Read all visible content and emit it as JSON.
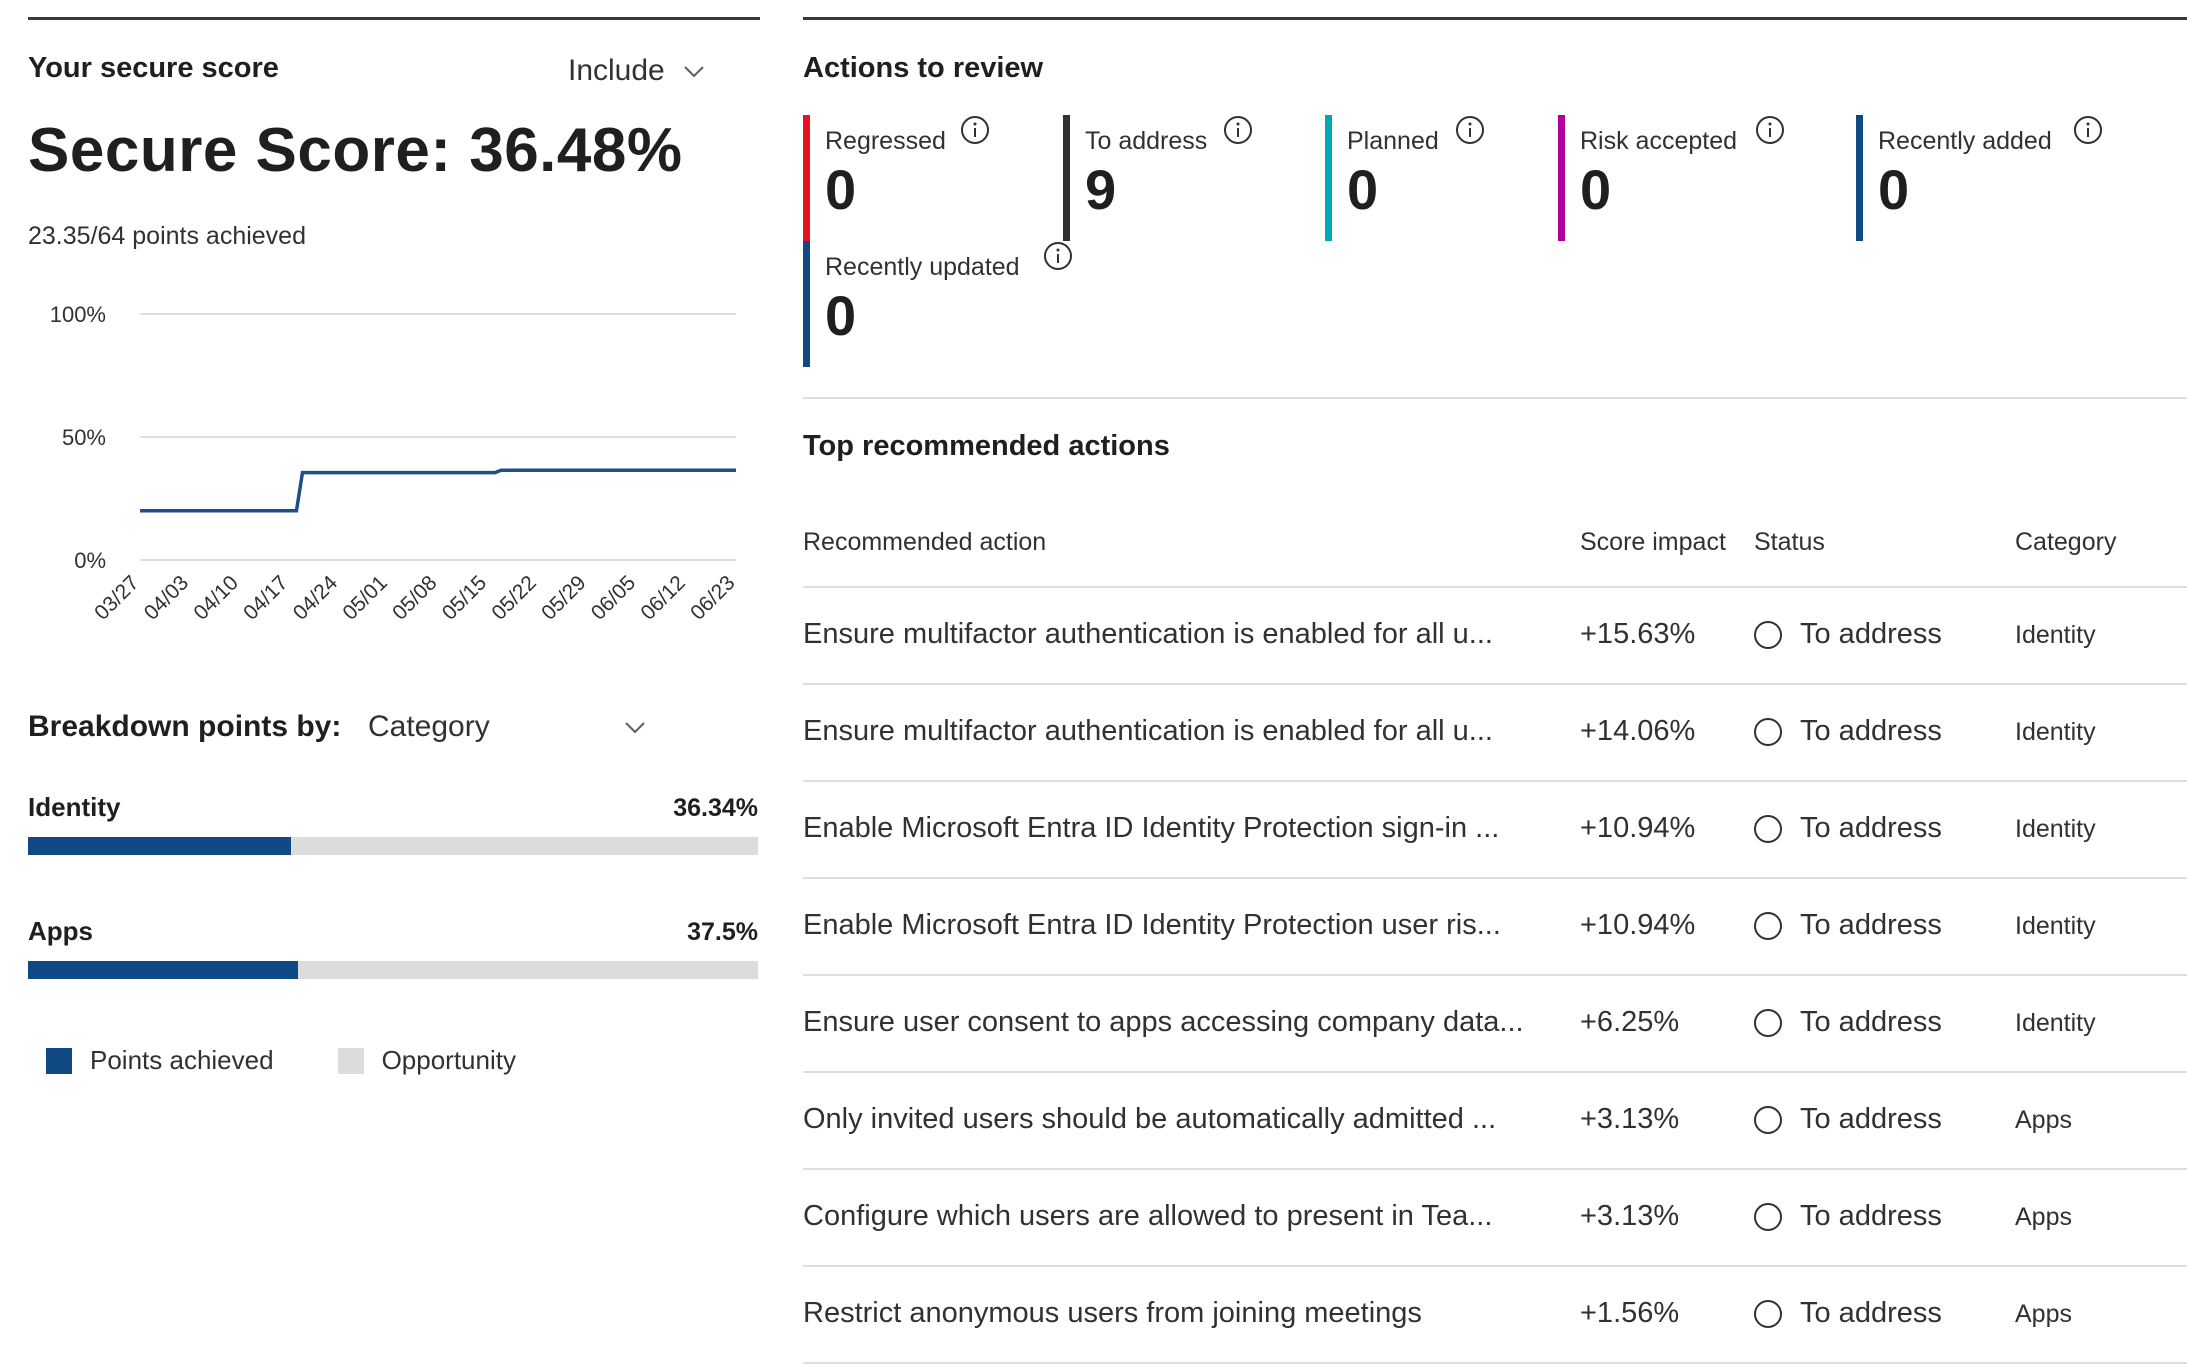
{
  "secure_score": {
    "title": "Your secure score",
    "include_label": "Include",
    "heading": "Secure Score: 36.48%",
    "points_achieved": "23.35/64 points achieved"
  },
  "chart_data": {
    "type": "line",
    "y_tick_labels": [
      "100%",
      "50%",
      "0%"
    ],
    "ylim": [
      0,
      100
    ],
    "x": [
      "03/27",
      "04/03",
      "04/10",
      "04/17",
      "04/24",
      "05/01",
      "05/08",
      "05/15",
      "05/22",
      "05/29",
      "06/05",
      "06/12",
      "06/23"
    ],
    "series": [
      {
        "values": [
          20,
          20,
          20,
          20,
          35.5,
          35.5,
          35.5,
          35.5,
          36.5,
          36.5,
          36.5,
          36.5,
          36.5
        ]
      }
    ],
    "grid": true,
    "color": "#1f4e8c"
  },
  "breakdown": {
    "label": "Breakdown points by:",
    "selected": "Category",
    "categories": [
      {
        "name": "Identity",
        "percent": "36.34%",
        "fraction": 0.36
      },
      {
        "name": "Apps",
        "percent": "37.5%",
        "fraction": 0.37
      }
    ],
    "legend": [
      {
        "label": "Points achieved",
        "color": "#0f4a84"
      },
      {
        "label": "Opportunity",
        "color": "#dcdcdc"
      }
    ]
  },
  "actions_to_review": {
    "title": "Actions to review",
    "tiles": [
      {
        "label": "Regressed",
        "value": "0",
        "color": "#e81123"
      },
      {
        "label": "To address",
        "value": "9",
        "color": "#323130"
      },
      {
        "label": "Planned",
        "value": "0",
        "color": "#00a8b5"
      },
      {
        "label": "Risk accepted",
        "value": "0",
        "color": "#b4009e"
      },
      {
        "label": "Recently added",
        "value": "0",
        "color": "#0f4a84"
      },
      {
        "label": "Recently updated",
        "value": "0",
        "color": "#0f4a84"
      }
    ]
  },
  "top_actions": {
    "title": "Top recommended actions",
    "columns": {
      "action": "Recommended action",
      "impact": "Score impact",
      "status": "Status",
      "category": "Category"
    },
    "rows": [
      {
        "action": "Ensure multifactor authentication is enabled for all u...",
        "impact": "+15.63%",
        "status": "To address",
        "category": "Identity"
      },
      {
        "action": "Ensure multifactor authentication is enabled for all u...",
        "impact": "+14.06%",
        "status": "To address",
        "category": "Identity"
      },
      {
        "action": "Enable Microsoft Entra ID Identity Protection sign-in ...",
        "impact": "+10.94%",
        "status": "To address",
        "category": "Identity"
      },
      {
        "action": "Enable Microsoft Entra ID Identity Protection user ris...",
        "impact": "+10.94%",
        "status": "To address",
        "category": "Identity"
      },
      {
        "action": "Ensure user consent to apps accessing company data...",
        "impact": "+6.25%",
        "status": "To address",
        "category": "Identity"
      },
      {
        "action": "Only invited users should be automatically admitted ...",
        "impact": "+3.13%",
        "status": "To address",
        "category": "Apps"
      },
      {
        "action": "Configure which users are allowed to present in Tea...",
        "impact": "+3.13%",
        "status": "To address",
        "category": "Apps"
      },
      {
        "action": "Restrict anonymous users from joining meetings",
        "impact": "+1.56%",
        "status": "To address",
        "category": "Apps"
      }
    ]
  }
}
